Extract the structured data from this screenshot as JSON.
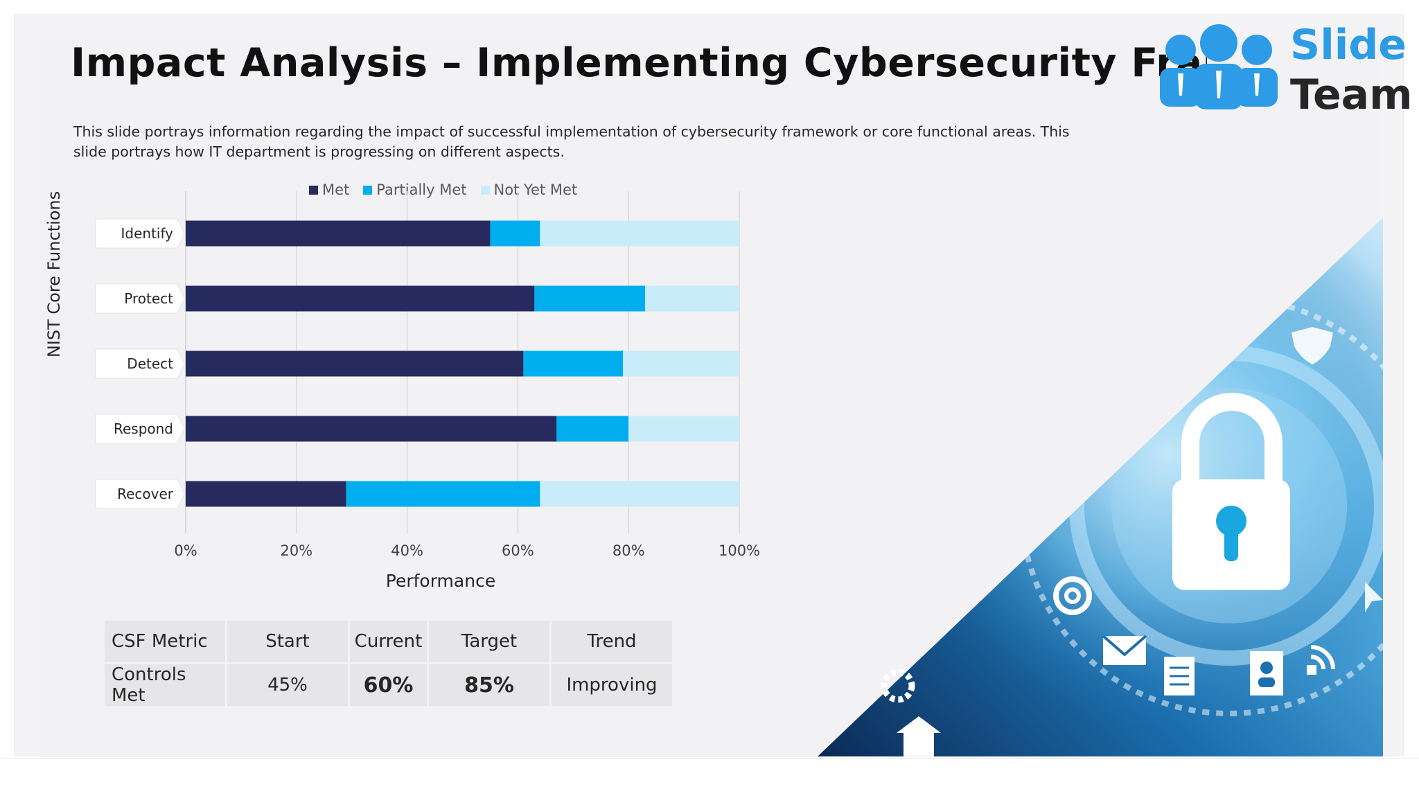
{
  "slide": {
    "title": "Impact Analysis – Implementing Cybersecurity Framework",
    "subtitle": "This slide portrays information regarding the impact of successful implementation of cybersecurity framework or core functional areas. This slide portrays how IT department is progressing on different aspects."
  },
  "logo": {
    "word1": "Slide",
    "word2": "Team",
    "text": "SlideTeam",
    "icon": "team-people-icon",
    "color": "#2d9be6"
  },
  "colors": {
    "met": "#262a5e",
    "partially_met": "#00aeef",
    "not_yet_met": "#c9ecfa",
    "value_current": "#1aa7e0",
    "value_target": "#262a5e"
  },
  "chart_data": {
    "type": "bar",
    "orientation": "horizontal",
    "stacked": true,
    "categories": [
      "Identify",
      "Protect",
      "Detect",
      "Respond",
      "Recover"
    ],
    "series": [
      {
        "name": "Met",
        "values": [
          55,
          63,
          61,
          67,
          29
        ]
      },
      {
        "name": "Partially Met",
        "values": [
          9,
          20,
          18,
          13,
          35
        ]
      },
      {
        "name": "Not Yet Met",
        "values": [
          36,
          17,
          21,
          20,
          36
        ]
      }
    ],
    "xlabel": "Performance",
    "ylabel": "NIST Core Functions",
    "xlim": [
      0,
      100
    ],
    "xticks": [
      "0%",
      "20%",
      "40%",
      "60%",
      "80%",
      "100%"
    ],
    "grid": true,
    "legend_position": "top"
  },
  "table": {
    "headers": [
      "CSF Metric",
      "Start",
      "Current",
      "Target",
      "Trend"
    ],
    "row": [
      "Controls Met",
      "45%",
      "60%",
      "85%",
      "Improving"
    ]
  },
  "decor": {
    "image": "cybersecurity-lock-photo",
    "icons": [
      "padlock-icon",
      "at-sign-icon",
      "envelope-icon",
      "document-icon",
      "contact-card-icon",
      "gear-icon",
      "house-icon",
      "shield-icon",
      "wifi-signal-icon",
      "cursor-icon"
    ]
  }
}
